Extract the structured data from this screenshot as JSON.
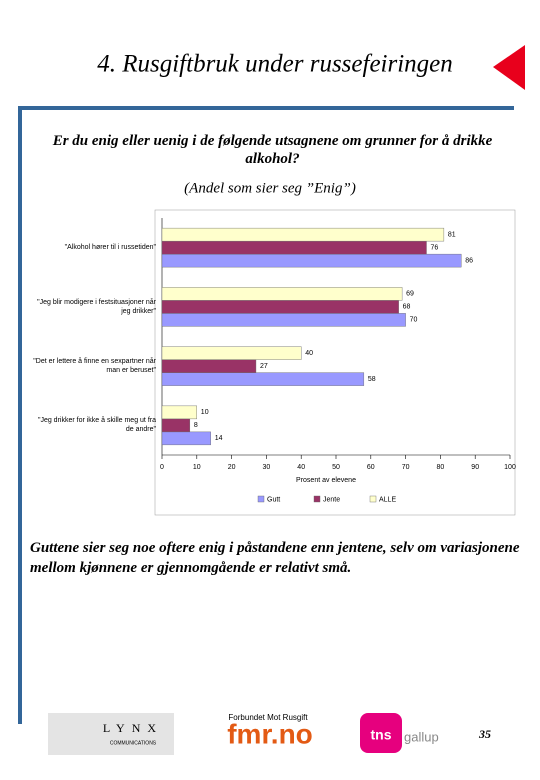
{
  "slide": {
    "title": "4. Rusgiftbruk under russefeiringen",
    "question": "Er du enig eller uenig i de følgende utsagnene om grunner for å drikke alkohol?",
    "subtitle": "(Andel som sier seg ”Enig”)",
    "conclusion": "Guttene sier seg noe oftere enig i påstandene enn jentene, selv om variasjonene mellom kjønnene er gjennomgående er relativt små.",
    "page": "35"
  },
  "logos": [
    {
      "name": "LYNX",
      "sub": "COMMUNICATIONS"
    },
    {
      "name": "fmr.no",
      "sub": "Forbundet Mot Rusgift"
    },
    {
      "name": "tns",
      "sub": "gallup"
    }
  ],
  "chart_data": {
    "type": "hbar",
    "categories": [
      "\"Alkohol hører til i russetiden\"",
      "\"Jeg blir modigere i festsituasjoner når jeg drikker\"",
      "\"Det er lettere å finne en sexpartner når man er beruset\"",
      "\"Jeg drikker for ikke å skille meg ut fra de andre\""
    ],
    "series": [
      {
        "name": "Gutt",
        "color": "#9999ff",
        "values": [
          86,
          70,
          58,
          14
        ]
      },
      {
        "name": "Jente",
        "color": "#993366",
        "values": [
          76,
          68,
          27,
          8
        ]
      },
      {
        "name": "ALLE",
        "color": "#ffffcc",
        "values": [
          81,
          69,
          40,
          10
        ]
      }
    ],
    "xlabel": "Prosent av elevene",
    "xlim": [
      0,
      100
    ],
    "xticks": [
      0,
      10,
      20,
      30,
      40,
      50,
      60,
      70,
      80,
      90,
      100
    ]
  }
}
